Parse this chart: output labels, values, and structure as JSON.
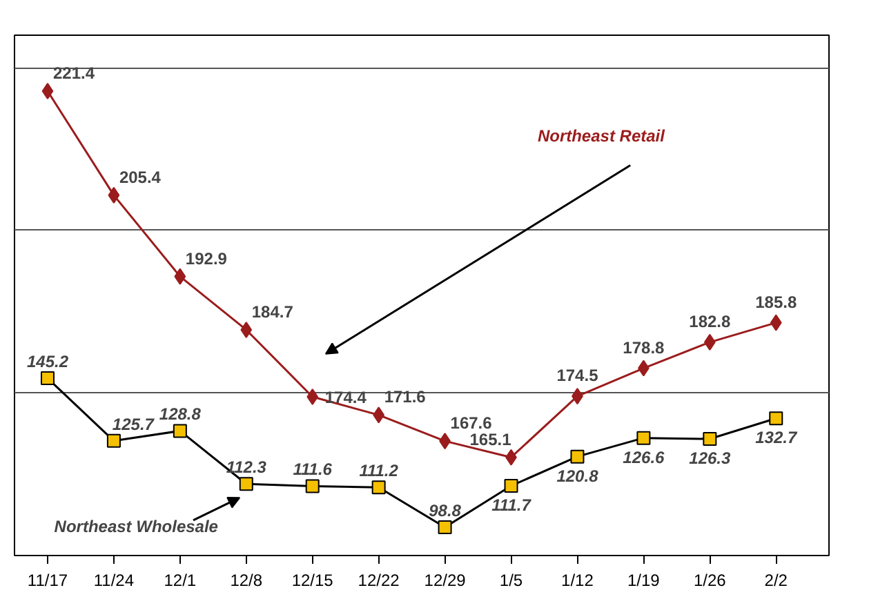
{
  "chart_data": {
    "type": "line",
    "categories": [
      "11/17",
      "11/24",
      "12/1",
      "12/8",
      "12/15",
      "12/22",
      "12/29",
      "1/5",
      "1/12",
      "1/19",
      "1/26",
      "2/2"
    ],
    "series": [
      {
        "name": "Northeast Retail",
        "color": "#9b1c1c",
        "marker": "diamond",
        "values": [
          221.4,
          205.4,
          192.9,
          184.7,
          174.4,
          171.6,
          167.6,
          165.1,
          174.5,
          178.8,
          182.8,
          185.8
        ]
      },
      {
        "name": "Northeast Wholesale",
        "color": "#000000",
        "marker": "square",
        "axis": "y2",
        "colors": [
          "#f5c000",
          "#f5c000",
          "#f5c000",
          "#f5c000",
          "#f5c000",
          "#f5c000",
          "#f5c000",
          "#f5c000",
          "#f5c000",
          "#f5c000",
          "#f5c000",
          "#f5c000"
        ],
        "values": [
          145.2,
          125.7,
          128.8,
          112.3,
          111.6,
          111.2,
          98.8,
          111.7,
          120.8,
          126.6,
          126.3,
          132.7
        ]
      }
    ],
    "ylim": [
      150,
      230
    ],
    "yticks": [
      {
        "value": 150,
        "label": null
      },
      {
        "value": 175,
        "label": null
      },
      {
        "value": 200,
        "label": null
      },
      {
        "value": 225,
        "label": null
      }
    ],
    "y2lim": [
      90,
      252
    ],
    "grid": "y",
    "tick_labels": "x",
    "data_labels": true
  }
}
